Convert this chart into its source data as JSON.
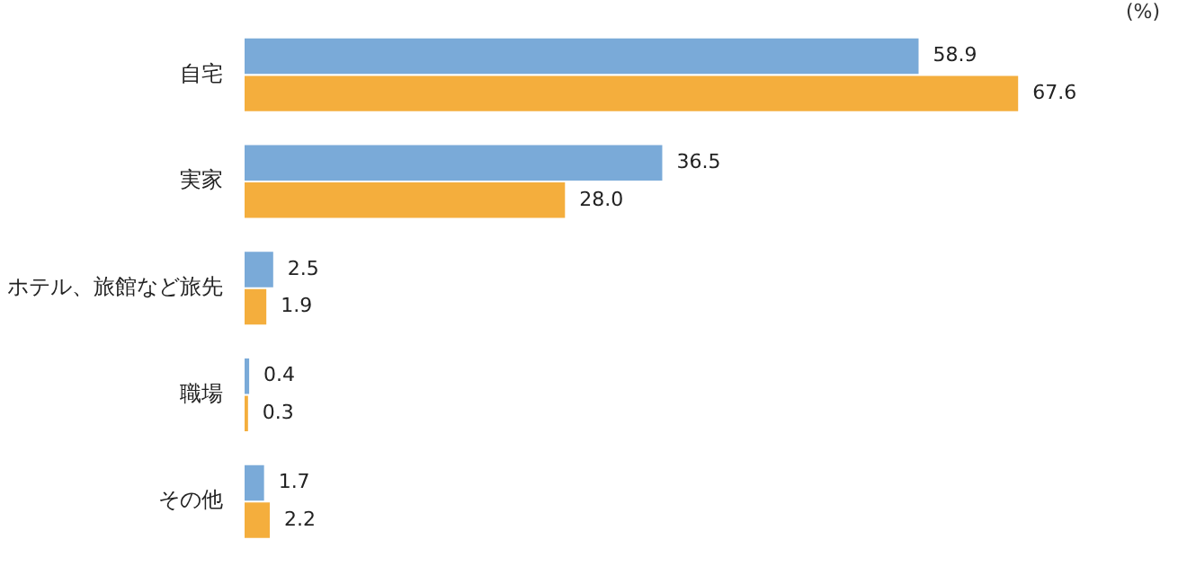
{
  "chart_data": {
    "type": "bar",
    "orientation": "horizontal",
    "categories": [
      "自宅",
      "実家",
      "ホテル、旅館など旅先",
      "職場",
      "その他"
    ],
    "series": [
      {
        "color": "#7aaad8",
        "values": [
          58.9,
          36.5,
          2.5,
          0.4,
          1.7
        ],
        "value_labels": [
          "58.9",
          "36.5",
          "2.5",
          "0.4",
          "1.7"
        ]
      },
      {
        "color": "#f4ae3d",
        "values": [
          67.6,
          28.0,
          1.9,
          0.3,
          2.2
        ],
        "value_labels": [
          "67.6",
          "28.0",
          "1.9",
          "0.3",
          "2.2"
        ]
      }
    ],
    "annotations": [
      "(%)"
    ]
  }
}
